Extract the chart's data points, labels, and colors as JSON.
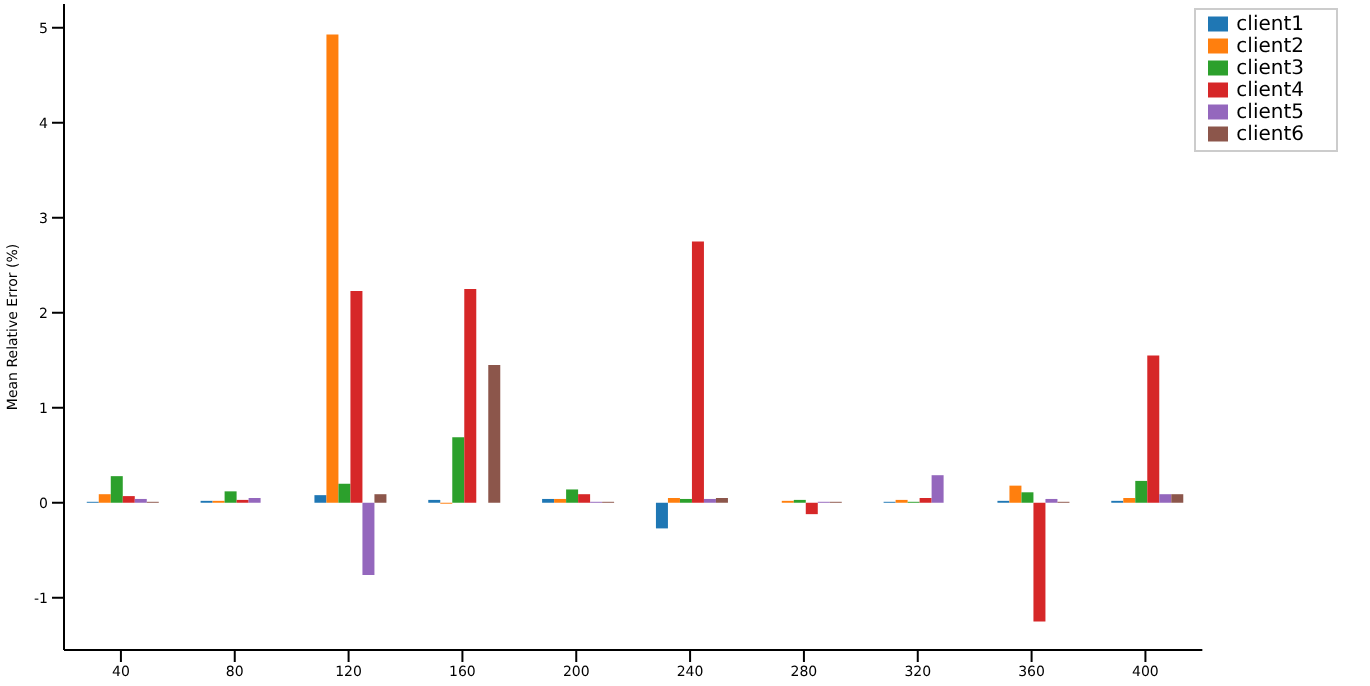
{
  "chart_data": {
    "type": "bar",
    "ylabel": "Mean Relative Error (%)",
    "categories": [
      "40",
      "80",
      "120",
      "160",
      "200",
      "240",
      "280",
      "320",
      "360",
      "400"
    ],
    "series": [
      {
        "name": "client1",
        "color": "#1f77b4",
        "values": [
          0.01,
          0.02,
          0.08,
          0.03,
          0.04,
          -0.27,
          0,
          0.01,
          0.02,
          0.02
        ]
      },
      {
        "name": "client2",
        "color": "#ff7f0e",
        "values": [
          0.09,
          0.02,
          4.93,
          -0.01,
          0.04,
          0.05,
          0.02,
          0.03,
          0.18,
          0.05
        ]
      },
      {
        "name": "client3",
        "color": "#2ca02c",
        "values": [
          0.28,
          0.12,
          0.2,
          0.69,
          0.14,
          0.04,
          0.03,
          0.01,
          0.11,
          0.23
        ]
      },
      {
        "name": "client4",
        "color": "#d62728",
        "values": [
          0.07,
          0.03,
          2.23,
          2.25,
          0.09,
          2.75,
          -0.12,
          0.05,
          -1.25,
          1.55
        ]
      },
      {
        "name": "client5",
        "color": "#9467bd",
        "values": [
          0.04,
          0.05,
          -0.76,
          0,
          0.01,
          0.04,
          0.01,
          0.29,
          0.04,
          0.09
        ]
      },
      {
        "name": "client6",
        "color": "#8c564b",
        "values": [
          0.01,
          0,
          0.09,
          1.45,
          0.01,
          0.05,
          0.01,
          0,
          0.01,
          0.09
        ]
      }
    ],
    "ylim": [
      -1.55,
      5.25
    ],
    "yticks": [
      -1,
      0,
      1,
      2,
      3,
      4,
      5
    ],
    "grid": false,
    "legend": "top right"
  }
}
